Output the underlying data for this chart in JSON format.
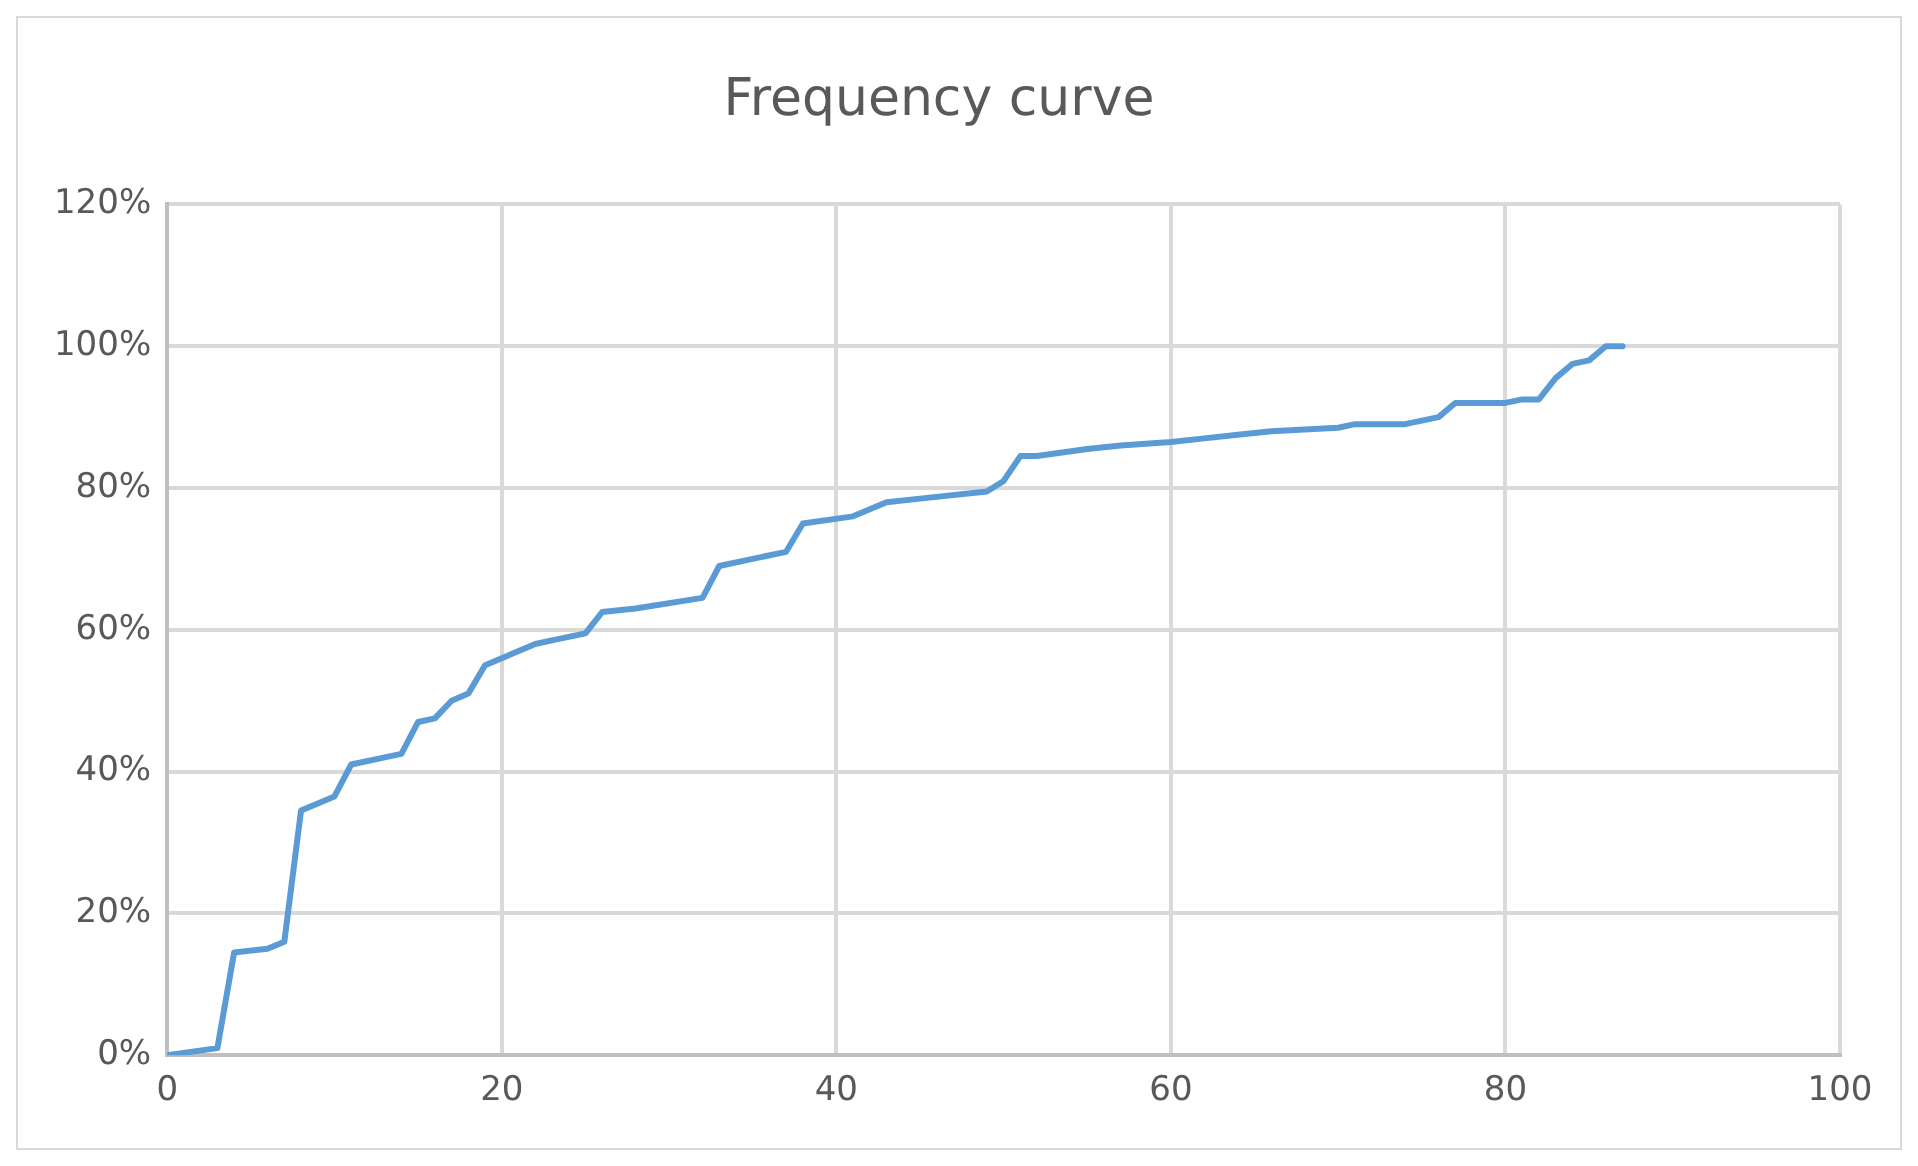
{
  "chart_data": {
    "type": "line",
    "title": "Frequency curve",
    "x": [
      0,
      3,
      4,
      6,
      7,
      8,
      10,
      11,
      13,
      14,
      15,
      16,
      17,
      18,
      19,
      20,
      22,
      23,
      25,
      26,
      28,
      32,
      33,
      35,
      37,
      38,
      41,
      42,
      43,
      45,
      49,
      50,
      51,
      52,
      55,
      57,
      60,
      62,
      64,
      66,
      70,
      71,
      74,
      76,
      77,
      80,
      81,
      82,
      83,
      84,
      85,
      86,
      87
    ],
    "series": [
      {
        "color": "#5b9bd5",
        "values": [
          0,
          1,
          14.5,
          15,
          16,
          34.5,
          36.5,
          41,
          42,
          42.5,
          47,
          47.5,
          50,
          51,
          55,
          56,
          58,
          58.5,
          59.5,
          62.5,
          63,
          64.5,
          69,
          70,
          71,
          75,
          76,
          77,
          78,
          78.5,
          79.5,
          81,
          84.5,
          84.5,
          85.5,
          86,
          86.5,
          87,
          87.5,
          88,
          88.5,
          89,
          89,
          90,
          92,
          92,
          92.5,
          92.5,
          95.5,
          97.5,
          98,
          100,
          100
        ]
      }
    ],
    "xlim": [
      0,
      100
    ],
    "xticks": [
      0,
      20,
      40,
      60,
      80,
      100
    ],
    "ylim": [
      0,
      120
    ],
    "yticks": [
      {
        "value": 0,
        "label": "0%"
      },
      {
        "value": 20,
        "label": "20%"
      },
      {
        "value": 40,
        "label": "40%"
      },
      {
        "value": 60,
        "label": "60%"
      },
      {
        "value": 80,
        "label": "80%"
      },
      {
        "value": 100,
        "label": "100%"
      },
      {
        "value": 120,
        "label": "120%"
      }
    ],
    "grid": true,
    "legend": false,
    "marker": "none",
    "line_style": "solid"
  }
}
